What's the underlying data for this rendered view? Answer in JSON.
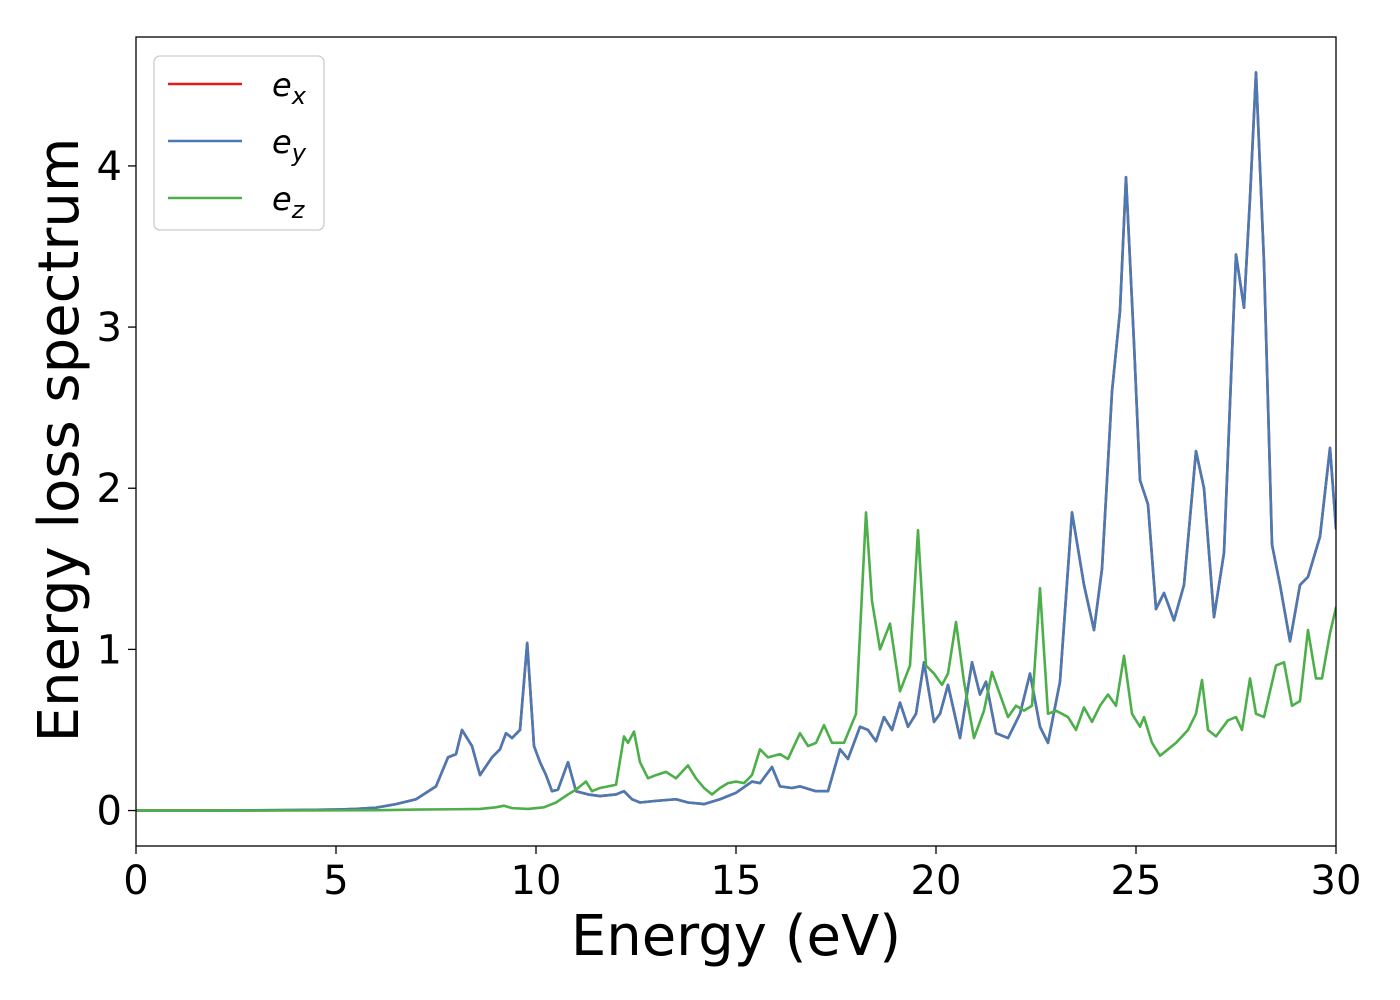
{
  "chart_data": {
    "type": "line",
    "title": "",
    "xlabel": "Energy (eV)",
    "ylabel": "Energy loss spectrum",
    "xlim": [
      0,
      30
    ],
    "ylim": [
      -0.22,
      4.8
    ],
    "xticks": [
      0,
      5,
      10,
      15,
      20,
      25,
      30
    ],
    "yticks": [
      0,
      1,
      2,
      3,
      4
    ],
    "grid": false,
    "legend": "top-left",
    "series": [
      {
        "name": "e_x",
        "legend_base": "e",
        "legend_sub": "x",
        "color": "#e41a1c",
        "points": [
          [
            0,
            0
          ],
          [
            2,
            0
          ],
          [
            4,
            0.003
          ],
          [
            5,
            0.006
          ],
          [
            5.5,
            0.01
          ],
          [
            6,
            0.018
          ],
          [
            6.5,
            0.04
          ],
          [
            7,
            0.07
          ],
          [
            7.5,
            0.15
          ],
          [
            7.8,
            0.33
          ],
          [
            8,
            0.35
          ],
          [
            8.15,
            0.5
          ],
          [
            8.4,
            0.4
          ],
          [
            8.6,
            0.22
          ],
          [
            8.9,
            0.33
          ],
          [
            9.1,
            0.38
          ],
          [
            9.25,
            0.48
          ],
          [
            9.4,
            0.45
          ],
          [
            9.6,
            0.5
          ],
          [
            9.78,
            1.04
          ],
          [
            9.95,
            0.4
          ],
          [
            10.1,
            0.3
          ],
          [
            10.25,
            0.22
          ],
          [
            10.4,
            0.12
          ],
          [
            10.55,
            0.13
          ],
          [
            10.8,
            0.3
          ],
          [
            11,
            0.12
          ],
          [
            11.3,
            0.1
          ],
          [
            11.6,
            0.09
          ],
          [
            12,
            0.1
          ],
          [
            12.2,
            0.12
          ],
          [
            12.4,
            0.07
          ],
          [
            12.6,
            0.05
          ],
          [
            13,
            0.06
          ],
          [
            13.5,
            0.07
          ],
          [
            13.8,
            0.05
          ],
          [
            14.2,
            0.04
          ],
          [
            14.6,
            0.07
          ],
          [
            15,
            0.11
          ],
          [
            15.4,
            0.18
          ],
          [
            15.6,
            0.17
          ],
          [
            15.9,
            0.27
          ],
          [
            16.1,
            0.15
          ],
          [
            16.4,
            0.14
          ],
          [
            16.6,
            0.15
          ],
          [
            17,
            0.12
          ],
          [
            17.3,
            0.12
          ],
          [
            17.6,
            0.38
          ],
          [
            17.8,
            0.32
          ],
          [
            18.1,
            0.52
          ],
          [
            18.3,
            0.5
          ],
          [
            18.5,
            0.43
          ],
          [
            18.7,
            0.58
          ],
          [
            18.9,
            0.5
          ],
          [
            19.1,
            0.67
          ],
          [
            19.3,
            0.52
          ],
          [
            19.5,
            0.6
          ],
          [
            19.7,
            0.92
          ],
          [
            19.95,
            0.55
          ],
          [
            20.1,
            0.6
          ],
          [
            20.3,
            0.78
          ],
          [
            20.6,
            0.45
          ],
          [
            20.9,
            0.92
          ],
          [
            21.1,
            0.72
          ],
          [
            21.25,
            0.8
          ],
          [
            21.5,
            0.48
          ],
          [
            21.8,
            0.45
          ],
          [
            22.1,
            0.6
          ],
          [
            22.35,
            0.85
          ],
          [
            22.6,
            0.52
          ],
          [
            22.8,
            0.42
          ],
          [
            23.1,
            0.8
          ],
          [
            23.4,
            1.85
          ],
          [
            23.7,
            1.4
          ],
          [
            23.95,
            1.12
          ],
          [
            24.15,
            1.5
          ],
          [
            24.4,
            2.6
          ],
          [
            24.6,
            3.1
          ],
          [
            24.75,
            3.93
          ],
          [
            24.95,
            2.9
          ],
          [
            25.1,
            2.05
          ],
          [
            25.3,
            1.9
          ],
          [
            25.5,
            1.25
          ],
          [
            25.7,
            1.35
          ],
          [
            25.95,
            1.18
          ],
          [
            26.2,
            1.4
          ],
          [
            26.5,
            2.23
          ],
          [
            26.7,
            2.0
          ],
          [
            26.95,
            1.2
          ],
          [
            27.2,
            1.6
          ],
          [
            27.5,
            3.45
          ],
          [
            27.7,
            3.12
          ],
          [
            27.85,
            3.8
          ],
          [
            28,
            4.58
          ],
          [
            28.2,
            3.4
          ],
          [
            28.4,
            1.65
          ],
          [
            28.6,
            1.4
          ],
          [
            28.85,
            1.05
          ],
          [
            29.1,
            1.4
          ],
          [
            29.3,
            1.45
          ],
          [
            29.6,
            1.7
          ],
          [
            29.85,
            2.25
          ],
          [
            30,
            1.75
          ]
        ]
      },
      {
        "name": "e_y",
        "legend_base": "e",
        "legend_sub": "y",
        "color": "#4a7ab4",
        "points": [
          [
            0,
            0
          ],
          [
            2,
            0
          ],
          [
            4,
            0.003
          ],
          [
            5,
            0.006
          ],
          [
            5.5,
            0.01
          ],
          [
            6,
            0.018
          ],
          [
            6.5,
            0.04
          ],
          [
            7,
            0.07
          ],
          [
            7.5,
            0.15
          ],
          [
            7.8,
            0.33
          ],
          [
            8,
            0.35
          ],
          [
            8.15,
            0.5
          ],
          [
            8.4,
            0.4
          ],
          [
            8.6,
            0.22
          ],
          [
            8.9,
            0.33
          ],
          [
            9.1,
            0.38
          ],
          [
            9.25,
            0.48
          ],
          [
            9.4,
            0.45
          ],
          [
            9.6,
            0.5
          ],
          [
            9.78,
            1.04
          ],
          [
            9.95,
            0.4
          ],
          [
            10.1,
            0.3
          ],
          [
            10.25,
            0.22
          ],
          [
            10.4,
            0.12
          ],
          [
            10.55,
            0.13
          ],
          [
            10.8,
            0.3
          ],
          [
            11,
            0.12
          ],
          [
            11.3,
            0.1
          ],
          [
            11.6,
            0.09
          ],
          [
            12,
            0.1
          ],
          [
            12.2,
            0.12
          ],
          [
            12.4,
            0.07
          ],
          [
            12.6,
            0.05
          ],
          [
            13,
            0.06
          ],
          [
            13.5,
            0.07
          ],
          [
            13.8,
            0.05
          ],
          [
            14.2,
            0.04
          ],
          [
            14.6,
            0.07
          ],
          [
            15,
            0.11
          ],
          [
            15.4,
            0.18
          ],
          [
            15.6,
            0.17
          ],
          [
            15.9,
            0.27
          ],
          [
            16.1,
            0.15
          ],
          [
            16.4,
            0.14
          ],
          [
            16.6,
            0.15
          ],
          [
            17,
            0.12
          ],
          [
            17.3,
            0.12
          ],
          [
            17.6,
            0.38
          ],
          [
            17.8,
            0.32
          ],
          [
            18.1,
            0.52
          ],
          [
            18.3,
            0.5
          ],
          [
            18.5,
            0.43
          ],
          [
            18.7,
            0.58
          ],
          [
            18.9,
            0.5
          ],
          [
            19.1,
            0.67
          ],
          [
            19.3,
            0.52
          ],
          [
            19.5,
            0.6
          ],
          [
            19.7,
            0.92
          ],
          [
            19.95,
            0.55
          ],
          [
            20.1,
            0.6
          ],
          [
            20.3,
            0.78
          ],
          [
            20.6,
            0.45
          ],
          [
            20.9,
            0.92
          ],
          [
            21.1,
            0.72
          ],
          [
            21.25,
            0.8
          ],
          [
            21.5,
            0.48
          ],
          [
            21.8,
            0.45
          ],
          [
            22.1,
            0.6
          ],
          [
            22.35,
            0.85
          ],
          [
            22.6,
            0.52
          ],
          [
            22.8,
            0.42
          ],
          [
            23.1,
            0.8
          ],
          [
            23.4,
            1.85
          ],
          [
            23.7,
            1.4
          ],
          [
            23.95,
            1.12
          ],
          [
            24.15,
            1.5
          ],
          [
            24.4,
            2.6
          ],
          [
            24.6,
            3.1
          ],
          [
            24.75,
            3.93
          ],
          [
            24.95,
            2.9
          ],
          [
            25.1,
            2.05
          ],
          [
            25.3,
            1.9
          ],
          [
            25.5,
            1.25
          ],
          [
            25.7,
            1.35
          ],
          [
            25.95,
            1.18
          ],
          [
            26.2,
            1.4
          ],
          [
            26.5,
            2.23
          ],
          [
            26.7,
            2.0
          ],
          [
            26.95,
            1.2
          ],
          [
            27.2,
            1.6
          ],
          [
            27.5,
            3.45
          ],
          [
            27.7,
            3.12
          ],
          [
            27.85,
            3.8
          ],
          [
            28,
            4.58
          ],
          [
            28.2,
            3.4
          ],
          [
            28.4,
            1.65
          ],
          [
            28.6,
            1.4
          ],
          [
            28.85,
            1.05
          ],
          [
            29.1,
            1.4
          ],
          [
            29.3,
            1.45
          ],
          [
            29.6,
            1.7
          ],
          [
            29.85,
            2.25
          ],
          [
            30,
            1.75
          ]
        ]
      },
      {
        "name": "e_z",
        "legend_base": "e",
        "legend_sub": "z",
        "color": "#4daf4a",
        "points": [
          [
            0,
            0
          ],
          [
            3,
            0
          ],
          [
            5,
            0.001
          ],
          [
            6,
            0.002
          ],
          [
            7,
            0.006
          ],
          [
            8,
            0.008
          ],
          [
            8.6,
            0.01
          ],
          [
            9,
            0.02
          ],
          [
            9.2,
            0.03
          ],
          [
            9.4,
            0.015
          ],
          [
            9.8,
            0.01
          ],
          [
            10.2,
            0.02
          ],
          [
            10.5,
            0.05
          ],
          [
            10.8,
            0.1
          ],
          [
            11,
            0.13
          ],
          [
            11.25,
            0.18
          ],
          [
            11.4,
            0.12
          ],
          [
            11.6,
            0.14
          ],
          [
            12,
            0.16
          ],
          [
            12.2,
            0.46
          ],
          [
            12.3,
            0.42
          ],
          [
            12.45,
            0.49
          ],
          [
            12.6,
            0.3
          ],
          [
            12.8,
            0.2
          ],
          [
            13,
            0.22
          ],
          [
            13.25,
            0.24
          ],
          [
            13.5,
            0.2
          ],
          [
            13.8,
            0.28
          ],
          [
            14,
            0.2
          ],
          [
            14.2,
            0.14
          ],
          [
            14.4,
            0.1
          ],
          [
            14.6,
            0.14
          ],
          [
            14.8,
            0.17
          ],
          [
            15,
            0.18
          ],
          [
            15.2,
            0.17
          ],
          [
            15.4,
            0.22
          ],
          [
            15.6,
            0.38
          ],
          [
            15.8,
            0.33
          ],
          [
            16.1,
            0.35
          ],
          [
            16.3,
            0.32
          ],
          [
            16.6,
            0.48
          ],
          [
            16.8,
            0.4
          ],
          [
            17,
            0.42
          ],
          [
            17.2,
            0.53
          ],
          [
            17.4,
            0.42
          ],
          [
            17.7,
            0.42
          ],
          [
            18,
            0.6
          ],
          [
            18.25,
            1.85
          ],
          [
            18.4,
            1.3
          ],
          [
            18.6,
            1.0
          ],
          [
            18.85,
            1.16
          ],
          [
            19.1,
            0.74
          ],
          [
            19.35,
            0.9
          ],
          [
            19.55,
            1.74
          ],
          [
            19.75,
            0.9
          ],
          [
            19.95,
            0.85
          ],
          [
            20.15,
            0.78
          ],
          [
            20.3,
            0.85
          ],
          [
            20.5,
            1.17
          ],
          [
            20.7,
            0.8
          ],
          [
            20.95,
            0.45
          ],
          [
            21.2,
            0.62
          ],
          [
            21.4,
            0.86
          ],
          [
            21.6,
            0.72
          ],
          [
            21.8,
            0.58
          ],
          [
            22,
            0.65
          ],
          [
            22.2,
            0.62
          ],
          [
            22.4,
            0.65
          ],
          [
            22.6,
            1.38
          ],
          [
            22.8,
            0.6
          ],
          [
            23,
            0.62
          ],
          [
            23.3,
            0.58
          ],
          [
            23.5,
            0.5
          ],
          [
            23.7,
            0.64
          ],
          [
            23.9,
            0.55
          ],
          [
            24.1,
            0.65
          ],
          [
            24.3,
            0.72
          ],
          [
            24.5,
            0.65
          ],
          [
            24.7,
            0.96
          ],
          [
            24.9,
            0.6
          ],
          [
            25.1,
            0.52
          ],
          [
            25.2,
            0.58
          ],
          [
            25.4,
            0.42
          ],
          [
            25.6,
            0.34
          ],
          [
            25.8,
            0.38
          ],
          [
            26,
            0.42
          ],
          [
            26.3,
            0.5
          ],
          [
            26.5,
            0.6
          ],
          [
            26.65,
            0.81
          ],
          [
            26.8,
            0.5
          ],
          [
            27,
            0.46
          ],
          [
            27.3,
            0.56
          ],
          [
            27.5,
            0.58
          ],
          [
            27.65,
            0.5
          ],
          [
            27.85,
            0.82
          ],
          [
            28,
            0.6
          ],
          [
            28.2,
            0.58
          ],
          [
            28.5,
            0.9
          ],
          [
            28.7,
            0.92
          ],
          [
            28.9,
            0.65
          ],
          [
            29.1,
            0.68
          ],
          [
            29.3,
            1.12
          ],
          [
            29.5,
            0.82
          ],
          [
            29.65,
            0.82
          ],
          [
            29.85,
            1.1
          ],
          [
            30,
            1.26
          ]
        ]
      }
    ]
  }
}
